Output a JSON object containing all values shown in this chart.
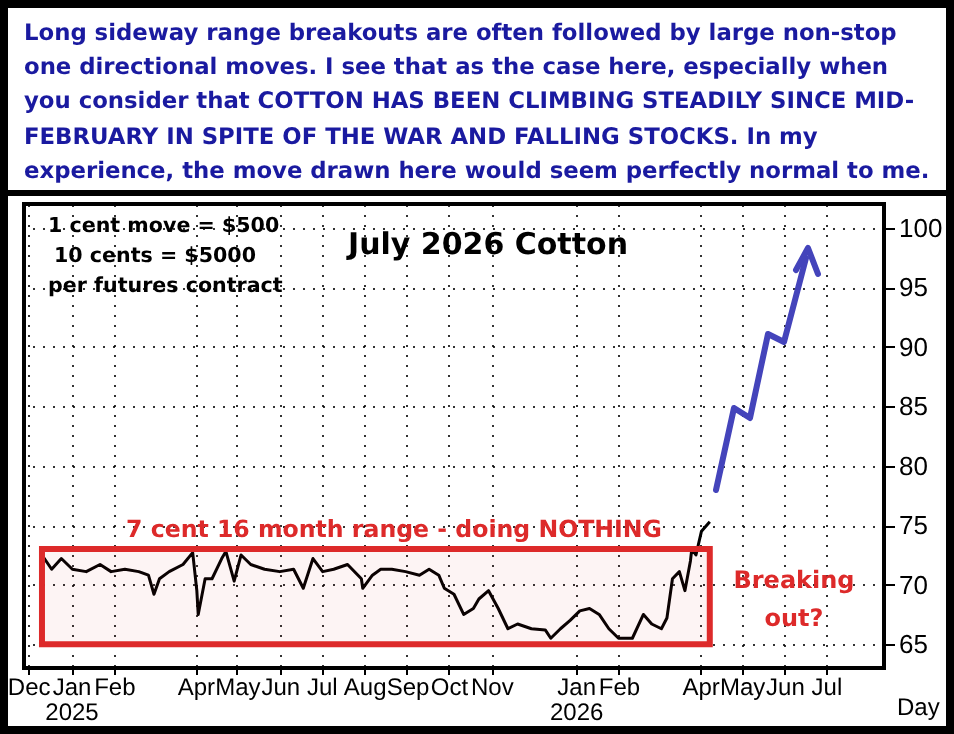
{
  "chart_data": {
    "type": "line",
    "title": "July 2026 Cotton",
    "subtitle": "Long sideway range breakouts are often followed by large non-stop one directional moves. I see that as the case here, especially when you consider that COTTON HAS BEEN CLIMBING STEADILY SINCE MID-FEBRUARY IN SPITE OF THE WAR AND FALLING STOCKS. In my experience, the move drawn here would seem perfectly normal to me.",
    "xlabel": "Day",
    "annotations": [
      "1 cent move = $500",
      "10 cents = $5000",
      "per futures contract",
      "Breaking out?"
    ],
    "series": [
      {
        "color": "#000000",
        "x": [
          "2024-12-11",
          "2024-12-18",
          "2024-12-25",
          "2025-01-02",
          "2025-01-12",
          "2025-01-22",
          "2025-01-30",
          "2025-02-09",
          "2025-02-19",
          "2025-02-26",
          "2025-03-02",
          "2025-03-06",
          "2025-03-13",
          "2025-03-23",
          "2025-03-30",
          "2025-04-02",
          "2025-04-03",
          "2025-04-08",
          "2025-04-13",
          "2025-04-20",
          "2025-04-23",
          "2025-04-29",
          "2025-05-04",
          "2025-05-11",
          "2025-05-21",
          "2025-06-01",
          "2025-06-11",
          "2025-06-18",
          "2025-06-25",
          "2025-07-02",
          "2025-07-10",
          "2025-07-20",
          "2025-07-30",
          "2025-07-31",
          "2025-08-07",
          "2025-08-13",
          "2025-08-21",
          "2025-08-31",
          "2025-09-10",
          "2025-09-17",
          "2025-09-24",
          "2025-09-28",
          "2025-10-05",
          "2025-10-12",
          "2025-10-19",
          "2025-10-23",
          "2025-10-30",
          "2025-11-06",
          "2025-11-13",
          "2025-11-20",
          "2025-11-30",
          "2025-12-10",
          "2025-12-14",
          "2025-12-21",
          "2025-12-28",
          "2026-01-04",
          "2026-01-11",
          "2026-01-18",
          "2026-01-25",
          "2026-02-01",
          "2026-02-11",
          "2026-02-19",
          "2026-02-25",
          "2026-03-04",
          "2026-03-08",
          "2026-03-12",
          "2026-03-17",
          "2026-03-21",
          "2026-03-25",
          "2026-03-26",
          "2026-03-29",
          "2026-04-02",
          "2026-04-08"
        ],
        "values": [
          72.5,
          71.3,
          72.2,
          71.3,
          71.1,
          71.7,
          71.1,
          71.3,
          71.1,
          70.8,
          69.2,
          70.5,
          71.1,
          71.7,
          72.7,
          69.5,
          67.5,
          70.5,
          70.5,
          72.2,
          72.8,
          70.3,
          72.5,
          71.7,
          71.3,
          71.1,
          71.3,
          69.7,
          72.2,
          71.1,
          71.3,
          71.7,
          70.5,
          69.7,
          70.8,
          71.3,
          71.3,
          71.1,
          70.8,
          71.3,
          70.8,
          69.7,
          69.2,
          67.5,
          68.0,
          68.8,
          69.5,
          68.0,
          66.3,
          66.7,
          66.3,
          66.2,
          65.5,
          66.3,
          67.0,
          67.8,
          68.0,
          67.5,
          66.3,
          65.5,
          65.5,
          67.5,
          66.7,
          66.3,
          67.2,
          70.5,
          71.1,
          69.5,
          72.0,
          73.0,
          72.5,
          74.5,
          75.3
        ]
      }
    ],
    "bands": [
      {
        "axis": "y",
        "from": 65,
        "to": 73,
        "label": "7 cent 16 month range - doing NOTHING",
        "color": "#dd2a2a"
      }
    ],
    "xlim": [
      "2024-11-28",
      "2026-08-12"
    ],
    "xticks": [
      {
        "value": "2024-12-01",
        "label": "Dec"
      },
      {
        "value": "2025-01-01",
        "label": "Jan 2025"
      },
      {
        "value": "2025-02-01",
        "label": "Feb"
      },
      {
        "value": "2025-04-01",
        "label": "Apr"
      },
      {
        "value": "2025-05-01",
        "label": "May"
      },
      {
        "value": "2025-06-01",
        "label": "Jun"
      },
      {
        "value": "2025-07-01",
        "label": "Jul"
      },
      {
        "value": "2025-08-01",
        "label": "Aug"
      },
      {
        "value": "2025-09-01",
        "label": "Sep"
      },
      {
        "value": "2025-10-01",
        "label": "Oct"
      },
      {
        "value": "2025-11-01",
        "label": "Nov"
      },
      {
        "value": "2026-01-01",
        "label": "Jan 2026"
      },
      {
        "value": "2026-02-01",
        "label": "Feb"
      },
      {
        "value": "2026-04-01",
        "label": "Apr"
      },
      {
        "value": "2026-05-01",
        "label": "May"
      },
      {
        "value": "2026-06-01",
        "label": "Jun"
      },
      {
        "value": "2026-07-01",
        "label": "Jul"
      }
    ],
    "ylim": [
      63,
      102
    ],
    "yticks": [
      65,
      70,
      75,
      80,
      85,
      90,
      95,
      100
    ],
    "grid": true
  }
}
